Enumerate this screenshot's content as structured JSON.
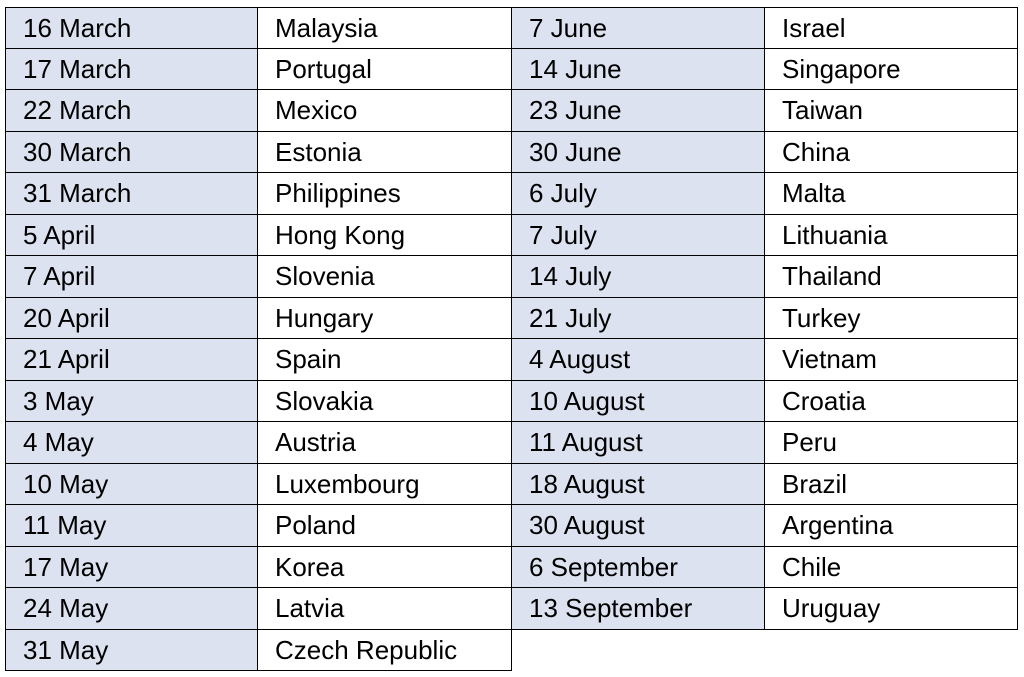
{
  "table": {
    "left": {
      "rows": [
        [
          "16 March",
          "Malaysia"
        ],
        [
          "17 March",
          "Portugal"
        ],
        [
          "22 March",
          "Mexico"
        ],
        [
          "30 March",
          "Estonia"
        ],
        [
          "31 March",
          "Philippines"
        ],
        [
          "5 April",
          "Hong Kong"
        ],
        [
          "7 April",
          "Slovenia"
        ],
        [
          "20 April",
          "Hungary"
        ],
        [
          "21 April",
          "Spain"
        ],
        [
          "3 May",
          "Slovakia"
        ],
        [
          "4 May",
          "Austria"
        ],
        [
          "10 May",
          "Luxembourg"
        ],
        [
          "11 May",
          "Poland"
        ],
        [
          "17 May",
          "Korea"
        ],
        [
          "24 May",
          "Latvia"
        ],
        [
          "31 May",
          "Czech Republic"
        ]
      ]
    },
    "right": {
      "rows": [
        [
          "7 June",
          "Israel"
        ],
        [
          "14 June",
          "Singapore"
        ],
        [
          "23 June",
          "Taiwan"
        ],
        [
          "30 June",
          "China"
        ],
        [
          "6 July",
          "Malta"
        ],
        [
          "7 July",
          "Lithuania"
        ],
        [
          "14 July",
          "Thailand"
        ],
        [
          "21 July",
          "Turkey"
        ],
        [
          "4 August",
          "Vietnam"
        ],
        [
          "10 August",
          "Croatia"
        ],
        [
          "11 August",
          "Peru"
        ],
        [
          "18 August",
          "Brazil"
        ],
        [
          "30 August",
          "Argentina"
        ],
        [
          "6 September",
          "Chile"
        ],
        [
          "13 September",
          "Uruguay"
        ]
      ]
    }
  }
}
